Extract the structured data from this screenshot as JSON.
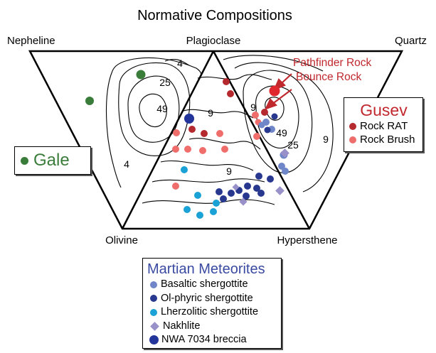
{
  "title": "Normative Compositions",
  "vertices": {
    "nepheline": "Nepheline",
    "plagioclase": "Plagioclase",
    "quartz": "Quartz",
    "olivine": "Olivine",
    "hypersthene": "Hypersthene"
  },
  "contour_labels": [
    "4",
    "25",
    "49",
    "9",
    "9",
    "49",
    "25",
    "9",
    "4",
    "9"
  ],
  "annotations": {
    "pathfinder": "Pathfinder Rock",
    "bounce": "Bounce Rock"
  },
  "gale_legend": {
    "label": "Gale",
    "color": "#3a7d3a"
  },
  "gusev_legend": {
    "title": "Gusev",
    "items": [
      {
        "label": "Rock RAT",
        "color": "#b52a2e"
      },
      {
        "label": "Rock Brush",
        "color": "#ef6e6c"
      }
    ]
  },
  "meteorite_legend": {
    "title": "Martian Meteorites",
    "items": [
      {
        "label": "Basaltic shergottite",
        "color": "#6f86c8",
        "marker": "circle"
      },
      {
        "label": "Ol-phyric shergottite",
        "color": "#28388f",
        "marker": "circle"
      },
      {
        "label": "Lherzolitic shergottite",
        "color": "#1aa1d6",
        "marker": "circle"
      },
      {
        "label": "Nakhlite",
        "color": "#9890c8",
        "marker": "diamond"
      },
      {
        "label": "NWA 7034 breccia",
        "color": "#23349a",
        "marker": "circle-large"
      }
    ]
  }
}
